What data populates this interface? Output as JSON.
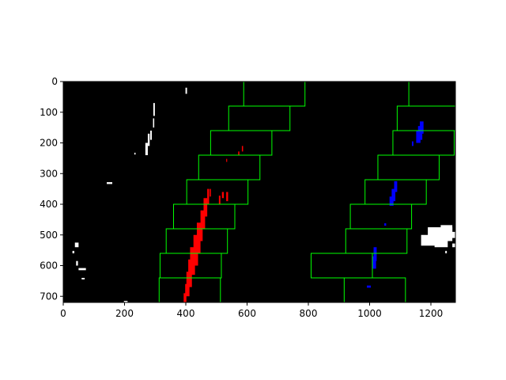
{
  "chart_data": {
    "type": "image",
    "title": "",
    "xlabel": "",
    "ylabel": "",
    "xlim": [
      0,
      1280
    ],
    "ylim": [
      720,
      0
    ],
    "x_ticks": [
      0,
      200,
      400,
      600,
      800,
      1000,
      1200
    ],
    "y_ticks": [
      0,
      100,
      200,
      300,
      400,
      500,
      600,
      700
    ],
    "grid": false,
    "legend": "none",
    "colors": {
      "background": "#000000",
      "window": "#00ff00",
      "left_lane": "#ff0000",
      "right_lane": "#0000ff",
      "noise": "#ffffff"
    },
    "windows": [
      {
        "x1": 589,
        "x2": 789,
        "y1": 0,
        "y2": 80
      },
      {
        "x1": 540,
        "x2": 740,
        "y1": 80,
        "y2": 160
      },
      {
        "x1": 481,
        "x2": 681,
        "y1": 160,
        "y2": 240
      },
      {
        "x1": 442,
        "x2": 642,
        "y1": 240,
        "y2": 320
      },
      {
        "x1": 403,
        "x2": 603,
        "y1": 320,
        "y2": 400
      },
      {
        "x1": 360,
        "x2": 560,
        "y1": 400,
        "y2": 480
      },
      {
        "x1": 336,
        "x2": 536,
        "y1": 480,
        "y2": 560
      },
      {
        "x1": 316,
        "x2": 516,
        "y1": 560,
        "y2": 640
      },
      {
        "x1": 313,
        "x2": 513,
        "y1": 640,
        "y2": 720
      },
      {
        "x1": 1128,
        "x2": 1328,
        "y1": 0,
        "y2": 80
      },
      {
        "x1": 1090,
        "x2": 1290,
        "y1": 80,
        "y2": 160
      },
      {
        "x1": 1076,
        "x2": 1276,
        "y1": 160,
        "y2": 240
      },
      {
        "x1": 1027,
        "x2": 1227,
        "y1": 240,
        "y2": 320
      },
      {
        "x1": 985,
        "x2": 1185,
        "y1": 320,
        "y2": 400
      },
      {
        "x1": 937,
        "x2": 1137,
        "y1": 400,
        "y2": 480
      },
      {
        "x1": 922,
        "x2": 1122,
        "y1": 480,
        "y2": 560
      },
      {
        "x1": 809,
        "x2": 1009,
        "y1": 560,
        "y2": 640
      },
      {
        "x1": 917,
        "x2": 1117,
        "y1": 640,
        "y2": 720
      }
    ],
    "left_lane_pixels": [
      {
        "x1": 393,
        "x2": 402,
        "y1": 720,
        "y2": 690
      },
      {
        "x1": 398,
        "x2": 412,
        "y1": 700,
        "y2": 660
      },
      {
        "x1": 402,
        "x2": 420,
        "y1": 670,
        "y2": 620
      },
      {
        "x1": 408,
        "x2": 430,
        "y1": 630,
        "y2": 580
      },
      {
        "x1": 414,
        "x2": 440,
        "y1": 600,
        "y2": 540
      },
      {
        "x1": 425,
        "x2": 448,
        "y1": 560,
        "y2": 500
      },
      {
        "x1": 436,
        "x2": 455,
        "y1": 520,
        "y2": 460
      },
      {
        "x1": 448,
        "x2": 463,
        "y1": 480,
        "y2": 420
      },
      {
        "x1": 458,
        "x2": 470,
        "y1": 440,
        "y2": 380
      },
      {
        "x1": 470,
        "x2": 476,
        "y1": 400,
        "y2": 350
      },
      {
        "x1": 478,
        "x2": 482,
        "y1": 375,
        "y2": 350
      },
      {
        "x1": 532,
        "x2": 538,
        "y1": 390,
        "y2": 360
      },
      {
        "x1": 518,
        "x2": 524,
        "y1": 380,
        "y2": 360
      },
      {
        "x1": 508,
        "x2": 513,
        "y1": 400,
        "y2": 372
      },
      {
        "x1": 415,
        "x2": 422,
        "y1": 560,
        "y2": 545
      },
      {
        "x1": 430,
        "x2": 436,
        "y1": 520,
        "y2": 505
      },
      {
        "x1": 583,
        "x2": 587,
        "y1": 228,
        "y2": 210
      },
      {
        "x1": 571,
        "x2": 575,
        "y1": 240,
        "y2": 228
      },
      {
        "x1": 532,
        "x2": 535,
        "y1": 262,
        "y2": 252
      }
    ],
    "right_lane_pixels": [
      {
        "x1": 1158,
        "x2": 1172,
        "y1": 190,
        "y2": 145
      },
      {
        "x1": 1152,
        "x2": 1166,
        "y1": 200,
        "y2": 160
      },
      {
        "x1": 1164,
        "x2": 1176,
        "y1": 170,
        "y2": 130
      },
      {
        "x1": 1138,
        "x2": 1143,
        "y1": 210,
        "y2": 195
      },
      {
        "x1": 1065,
        "x2": 1078,
        "y1": 405,
        "y2": 375
      },
      {
        "x1": 1072,
        "x2": 1084,
        "y1": 390,
        "y2": 350
      },
      {
        "x1": 1080,
        "x2": 1090,
        "y1": 360,
        "y2": 325
      },
      {
        "x1": 1010,
        "x2": 1021,
        "y1": 610,
        "y2": 570
      },
      {
        "x1": 1013,
        "x2": 1023,
        "y1": 585,
        "y2": 540
      },
      {
        "x1": 1048,
        "x2": 1054,
        "y1": 470,
        "y2": 462
      },
      {
        "x1": 991,
        "x2": 1004,
        "y1": 672,
        "y2": 665
      }
    ],
    "noise_pixels": [
      {
        "x1": 268,
        "x2": 276,
        "y1": 240,
        "y2": 200
      },
      {
        "x1": 276,
        "x2": 282,
        "y1": 210,
        "y2": 170
      },
      {
        "x1": 284,
        "x2": 289,
        "y1": 190,
        "y2": 160
      },
      {
        "x1": 293,
        "x2": 297,
        "y1": 150,
        "y2": 120
      },
      {
        "x1": 294,
        "x2": 299,
        "y1": 112,
        "y2": 70
      },
      {
        "x1": 399,
        "x2": 404,
        "y1": 40,
        "y2": 20
      },
      {
        "x1": 142,
        "x2": 160,
        "y1": 334,
        "y2": 328
      },
      {
        "x1": 232,
        "x2": 236,
        "y1": 238,
        "y2": 232
      },
      {
        "x1": 38,
        "x2": 50,
        "y1": 540,
        "y2": 525
      },
      {
        "x1": 30,
        "x2": 36,
        "y1": 560,
        "y2": 552
      },
      {
        "x1": 42,
        "x2": 48,
        "y1": 600,
        "y2": 585
      },
      {
        "x1": 50,
        "x2": 74,
        "y1": 615,
        "y2": 608
      },
      {
        "x1": 60,
        "x2": 70,
        "y1": 645,
        "y2": 640
      },
      {
        "x1": 198,
        "x2": 210,
        "y1": 722,
        "y2": 715
      },
      {
        "x1": 1168,
        "x2": 1240,
        "y1": 535,
        "y2": 500
      },
      {
        "x1": 1190,
        "x2": 1270,
        "y1": 520,
        "y2": 475
      },
      {
        "x1": 1232,
        "x2": 1270,
        "y1": 500,
        "y2": 468
      },
      {
        "x1": 1212,
        "x2": 1255,
        "y1": 540,
        "y2": 505
      },
      {
        "x1": 1255,
        "x2": 1280,
        "y1": 510,
        "y2": 490
      },
      {
        "x1": 1270,
        "x2": 1280,
        "y1": 540,
        "y2": 528
      },
      {
        "x1": 1236,
        "x2": 1242,
        "y1": 538,
        "y2": 530
      },
      {
        "x1": 1247,
        "x2": 1252,
        "y1": 560,
        "y2": 552
      }
    ]
  }
}
